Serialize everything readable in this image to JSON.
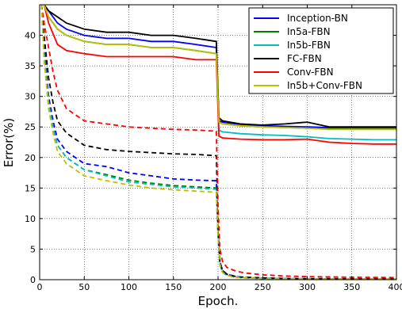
{
  "chart_data": {
    "type": "line",
    "xlabel": "Epoch.",
    "ylabel": "Error(%)",
    "xlim": [
      0,
      400
    ],
    "ylim": [
      0,
      45
    ],
    "xticks": [
      0,
      50,
      100,
      150,
      200,
      250,
      300,
      350,
      400
    ],
    "yticks": [
      0,
      5,
      10,
      15,
      20,
      25,
      30,
      35,
      40
    ],
    "grid": true,
    "legend_position": "top-right",
    "line_styles": {
      "solid": "validation error",
      "dashed": "training error"
    },
    "series": [
      {
        "name": "Inception-BN",
        "color": "#0000ff",
        "solid": {
          "x": [
            5,
            10,
            20,
            30,
            50,
            75,
            100,
            125,
            150,
            175,
            198,
            201,
            205,
            225,
            250,
            275,
            300,
            325,
            350,
            375,
            400
          ],
          "y": [
            45,
            44,
            42,
            41,
            40,
            39.5,
            39.5,
            39,
            39,
            38.5,
            38,
            26,
            25.8,
            25.4,
            25.2,
            25.1,
            25,
            24.9,
            24.9,
            24.9,
            24.9
          ]
        },
        "dashed": {
          "x": [
            2,
            5,
            10,
            15,
            20,
            30,
            40,
            50,
            75,
            100,
            125,
            150,
            175,
            198,
            200,
            202,
            205,
            210,
            220,
            230,
            250,
            275,
            300,
            350,
            400
          ],
          "y": [
            45,
            38,
            30,
            26,
            23,
            21,
            20,
            19,
            18.5,
            17.5,
            17,
            16.5,
            16.3,
            16.2,
            8,
            3,
            1.5,
            0.9,
            0.5,
            0.35,
            0.25,
            0.2,
            0.15,
            0.12,
            0.1
          ]
        }
      },
      {
        "name": "In5a-FBN",
        "color": "#008000",
        "solid": {
          "x": [
            5,
            10,
            20,
            30,
            50,
            75,
            100,
            125,
            150,
            175,
            198,
            201,
            205,
            225,
            250,
            275,
            300,
            325,
            350,
            375,
            400
          ],
          "y": [
            45,
            43,
            41,
            40,
            39,
            38.5,
            38.5,
            38,
            38,
            37.5,
            37,
            25.8,
            25.5,
            25.2,
            25,
            24.9,
            24.8,
            24.7,
            24.7,
            24.7,
            24.7
          ]
        },
        "dashed": {
          "x": [
            2,
            5,
            10,
            15,
            20,
            30,
            40,
            50,
            75,
            100,
            125,
            150,
            175,
            198,
            200,
            202,
            205,
            210,
            220,
            230,
            250,
            275,
            300,
            350,
            400
          ],
          "y": [
            45,
            37,
            29,
            25,
            22,
            20,
            19,
            18,
            17.2,
            16.3,
            15.8,
            15.4,
            15.2,
            15,
            7,
            2.5,
            1.2,
            0.7,
            0.4,
            0.3,
            0.2,
            0.16,
            0.12,
            0.1,
            0.08
          ]
        }
      },
      {
        "name": "In5b-FBN",
        "color": "#00bfbf",
        "solid": {
          "x": [
            5,
            10,
            20,
            30,
            50,
            75,
            100,
            125,
            150,
            175,
            198,
            201,
            205,
            225,
            250,
            275,
            300,
            325,
            350,
            375,
            400
          ],
          "y": [
            45,
            43,
            41,
            40,
            39,
            38.5,
            38.5,
            38,
            38,
            37.5,
            37,
            24.5,
            24.2,
            23.9,
            23.7,
            23.6,
            23.4,
            23.1,
            23,
            22.9,
            22.9
          ]
        },
        "dashed": {
          "x": [
            2,
            5,
            10,
            15,
            20,
            30,
            40,
            50,
            75,
            100,
            125,
            150,
            175,
            198,
            200,
            202,
            205,
            210,
            220,
            230,
            250,
            275,
            300,
            350,
            400
          ],
          "y": [
            45,
            37,
            29,
            25,
            22,
            20,
            19,
            18,
            17,
            16,
            15.6,
            15.2,
            15,
            14.8,
            7,
            2.5,
            1.2,
            0.7,
            0.4,
            0.3,
            0.2,
            0.15,
            0.12,
            0.1,
            0.08
          ]
        }
      },
      {
        "name": "FC-FBN",
        "color": "#000000",
        "solid": {
          "x": [
            5,
            10,
            20,
            30,
            50,
            75,
            100,
            125,
            150,
            175,
            198,
            201,
            205,
            225,
            250,
            275,
            300,
            325,
            350,
            375,
            400
          ],
          "y": [
            45,
            44,
            43,
            42,
            41,
            40.5,
            40.5,
            40,
            40,
            39.5,
            39,
            26.5,
            26,
            25.5,
            25.3,
            25.5,
            25.8,
            25,
            25,
            25,
            25
          ]
        },
        "dashed": {
          "x": [
            2,
            5,
            10,
            15,
            20,
            30,
            40,
            50,
            75,
            100,
            125,
            150,
            175,
            198,
            200,
            202,
            205,
            210,
            220,
            230,
            250,
            275,
            300,
            350,
            400
          ],
          "y": [
            45,
            40,
            33,
            29,
            26,
            24,
            23,
            22,
            21.3,
            21,
            20.8,
            20.6,
            20.5,
            20.3,
            9,
            3,
            1.5,
            0.9,
            0.5,
            0.4,
            0.3,
            0.2,
            0.18,
            0.15,
            0.13
          ]
        }
      },
      {
        "name": "Conv-FBN",
        "color": "#ff0000",
        "solid": {
          "x": [
            5,
            10,
            20,
            30,
            50,
            75,
            100,
            125,
            150,
            175,
            198,
            201,
            205,
            225,
            250,
            275,
            300,
            325,
            350,
            375,
            400
          ],
          "y": [
            45,
            42,
            38.5,
            37.5,
            37,
            36.5,
            36.5,
            36.5,
            36.5,
            36,
            36,
            23.5,
            23.2,
            23,
            22.9,
            22.9,
            23,
            22.5,
            22.3,
            22.2,
            22.2
          ]
        },
        "dashed": {
          "x": [
            2,
            5,
            10,
            15,
            20,
            30,
            40,
            50,
            75,
            100,
            125,
            150,
            175,
            198,
            200,
            202,
            205,
            210,
            220,
            230,
            250,
            275,
            300,
            350,
            400
          ],
          "y": [
            45,
            42,
            38,
            34,
            31,
            28,
            27,
            26,
            25.5,
            25,
            24.8,
            24.6,
            24.5,
            24.3,
            12,
            5,
            3,
            2,
            1.4,
            1.1,
            0.8,
            0.6,
            0.5,
            0.4,
            0.35
          ]
        }
      },
      {
        "name": "In5b+Conv-FBN",
        "color": "#bfbf00",
        "solid": {
          "x": [
            5,
            10,
            20,
            30,
            50,
            75,
            100,
            125,
            150,
            175,
            198,
            201,
            205,
            225,
            250,
            275,
            300,
            325,
            350,
            375,
            400
          ],
          "y": [
            45,
            43,
            41,
            40,
            39,
            38.5,
            38.5,
            38,
            38,
            37.5,
            37,
            25.8,
            25.5,
            25.2,
            25,
            24.9,
            24.8,
            24.6,
            24.6,
            24.6,
            24.6
          ]
        },
        "dashed": {
          "x": [
            2,
            5,
            10,
            15,
            20,
            30,
            40,
            50,
            75,
            100,
            125,
            150,
            175,
            198,
            200,
            202,
            205,
            210,
            220,
            230,
            250,
            275,
            300,
            350,
            400
          ],
          "y": [
            45,
            36,
            28,
            24,
            21,
            19,
            18,
            17,
            16.2,
            15.5,
            15,
            14.7,
            14.5,
            14.3,
            7,
            2.5,
            1.2,
            0.7,
            0.4,
            0.3,
            0.2,
            0.15,
            0.12,
            0.1,
            0.08
          ]
        }
      }
    ]
  }
}
